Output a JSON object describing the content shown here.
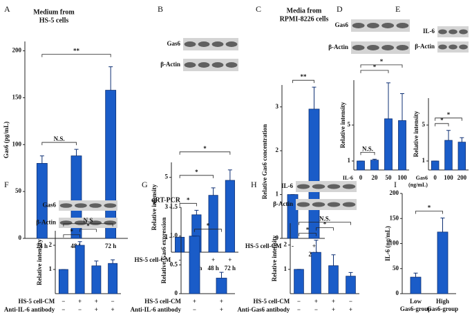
{
  "chart_data": [
    {
      "type": "bar",
      "panel": "A",
      "title": [
        "Medium from",
        "HS-5 cells"
      ],
      "ylabel": "Gas6 (pg/mL)",
      "ylim": [
        0,
        210
      ],
      "yticks": [
        0,
        50,
        100,
        150,
        200
      ],
      "categories": [
        "24 h",
        "48 h",
        "72 h"
      ],
      "values": [
        80,
        88,
        158
      ],
      "errors": [
        8,
        7,
        25
      ],
      "color": "#1a5cc8",
      "significance": [
        {
          "label": "N.S.",
          "from": 0,
          "to": 1
        },
        {
          "label": "**",
          "from": 0,
          "to": 2
        }
      ]
    },
    {
      "type": "bar",
      "panel": "B",
      "ylabel": "Relative intensity",
      "blots": [
        "Gas6",
        "β-Actin"
      ],
      "ylim": [
        0,
        6
      ],
      "yticks": [
        1,
        3,
        5
      ],
      "values": [
        1,
        2.5,
        3.8,
        4.8
      ],
      "errors": [
        0,
        0.3,
        0.5,
        0.7
      ],
      "color": "#1a5cc8",
      "rows": [
        {
          "name": "HS-5 cell-CM",
          "labels": [
            "-",
            "+",
            "+",
            "+"
          ]
        },
        {
          "labels": [
            null,
            "24 h",
            "48 h",
            "72 h"
          ]
        }
      ],
      "significance": [
        {
          "label": "*",
          "from": 0,
          "to": 1
        },
        {
          "label": "*",
          "from": 0,
          "to": 2
        },
        {
          "label": "*",
          "from": 0,
          "to": 3
        }
      ]
    },
    {
      "type": "bar",
      "panel": "C",
      "title": [
        "Media from",
        "RPMI-8226 cells"
      ],
      "ylabel": "Relative Gas6 concentration",
      "ylim": [
        0,
        3.5
      ],
      "yticks": [
        0,
        1,
        2,
        3
      ],
      "values": [
        1,
        2.95
      ],
      "errors": [
        0,
        0.5
      ],
      "color": "#1a5cc8",
      "rows": [
        {
          "name": "HS-5 cell-CM",
          "labels": [
            "-",
            "+"
          ]
        },
        {
          "labels": [
            null,
            "24 h"
          ]
        }
      ],
      "significance": [
        {
          "label": "**",
          "from": 0,
          "to": 1
        }
      ]
    },
    {
      "type": "bar",
      "panel": "D",
      "ylabel": "Relative intensity",
      "blots": [
        "Gas6",
        "β-Actin"
      ],
      "ylim": [
        0,
        10
      ],
      "yticks": [
        1,
        5
      ],
      "values": [
        1,
        1.1,
        5.7,
        5.5
      ],
      "errors": [
        0,
        0.1,
        4,
        3
      ],
      "color": "#1a5cc8",
      "rows": [
        {
          "name": [
            "IL-6",
            "(ng/mL)"
          ],
          "labels": [
            "0",
            "20",
            "50",
            "100"
          ]
        }
      ],
      "significance": [
        {
          "label": "N.S.",
          "from": 0,
          "to": 1
        },
        {
          "label": "*",
          "from": 0,
          "to": 2
        },
        {
          "label": "*",
          "from": 0,
          "to": 3
        }
      ]
    },
    {
      "type": "bar",
      "panel": "E",
      "ylabel": "Relative intensity",
      "blots": [
        "IL-6",
        "β-Actin"
      ],
      "ylim": [
        0,
        8
      ],
      "yticks": [
        1,
        5
      ],
      "values": [
        1,
        3.3,
        3.1
      ],
      "errors": [
        0,
        1.1,
        0.5
      ],
      "color": "#1a5cc8",
      "rows": [
        {
          "name": [
            "Gas6",
            "(ng/mL)"
          ],
          "labels": [
            "0",
            "100",
            "200"
          ]
        }
      ],
      "significance": [
        {
          "label": "*",
          "from": 0,
          "to": 1
        },
        {
          "label": "*",
          "from": 0,
          "to": 2
        }
      ]
    },
    {
      "type": "bar",
      "panel": "F",
      "ylabel": "Relative intensity",
      "blots": [
        "Gas6",
        "β-Actin"
      ],
      "ylim": [
        0,
        2.6
      ],
      "yticks": [
        1,
        2
      ],
      "values": [
        1,
        2.0,
        1.15,
        1.25
      ],
      "errors": [
        0,
        0.15,
        0.2,
        0.15
      ],
      "color": "#1a5cc8",
      "rows": [
        {
          "name": "HS-5 cell-CM",
          "labels": [
            "−",
            "+",
            "+",
            "−"
          ]
        },
        {
          "name": "Anti-IL-6 antibody",
          "labels": [
            "−",
            "−",
            "+",
            "+"
          ]
        }
      ],
      "significance": [
        {
          "label": "*",
          "from": 0,
          "to": 1
        },
        {
          "label": "*",
          "from": 1,
          "to": 2
        },
        {
          "label": "N.S",
          "from": 0,
          "to": 3
        }
      ]
    },
    {
      "type": "bar",
      "panel": "G",
      "title": "qRT-PCR",
      "ylabel": "Relative Gas6 expression",
      "ylim": [
        0,
        1.5
      ],
      "yticks": [
        0,
        0.5,
        {
          "value": 1,
          "label": "1.0"
        },
        1.5
      ],
      "values": [
        1,
        0.27
      ],
      "errors": [
        0,
        0.1
      ],
      "color": "#1a5cc8",
      "rows": [
        {
          "name": "HS-5 cell-CM",
          "labels": [
            "+",
            "+"
          ]
        },
        {
          "name": "Anti-IL-6 antibody",
          "labels": [
            "−",
            "+"
          ]
        }
      ],
      "significance": [
        {
          "label": "*",
          "from": 0,
          "to": 1
        }
      ]
    },
    {
      "type": "bar",
      "panel": "H",
      "ylabel": "Relative intensity",
      "blots": [
        "IL-6",
        "β-Actin"
      ],
      "ylim": [
        0,
        2.9
      ],
      "yticks": [
        1,
        2
      ],
      "values": [
        1,
        1.7,
        1.15,
        0.72
      ],
      "errors": [
        0,
        0.5,
        0.45,
        0.15
      ],
      "color": "#1a5cc8",
      "rows": [
        {
          "name": "HS-5 cell-CM",
          "labels": [
            "−",
            "+",
            "+",
            "−"
          ]
        },
        {
          "name": "Anti-Gas6 antibody",
          "labels": [
            "−",
            "−",
            "+",
            "+"
          ]
        }
      ],
      "significance": [
        {
          "label": "*",
          "from": 0,
          "to": 1
        },
        {
          "label": "*",
          "from": 1,
          "to": 2
        },
        {
          "label": "N.S.",
          "from": 0,
          "to": 3
        }
      ]
    },
    {
      "type": "bar",
      "panel": "I",
      "ylabel": "IL-6 (ng/mL)",
      "ylim": [
        0,
        200
      ],
      "yticks": [
        0,
        50,
        100,
        150,
        200
      ],
      "categories": [
        [
          "Low",
          "Gas6-group"
        ],
        [
          "High",
          "Gas6-group"
        ]
      ],
      "values": [
        33,
        123
      ],
      "errors": [
        8,
        28
      ],
      "color": "#1a5cc8",
      "significance": [
        {
          "label": "*",
          "from": 0,
          "to": 1
        }
      ]
    }
  ]
}
